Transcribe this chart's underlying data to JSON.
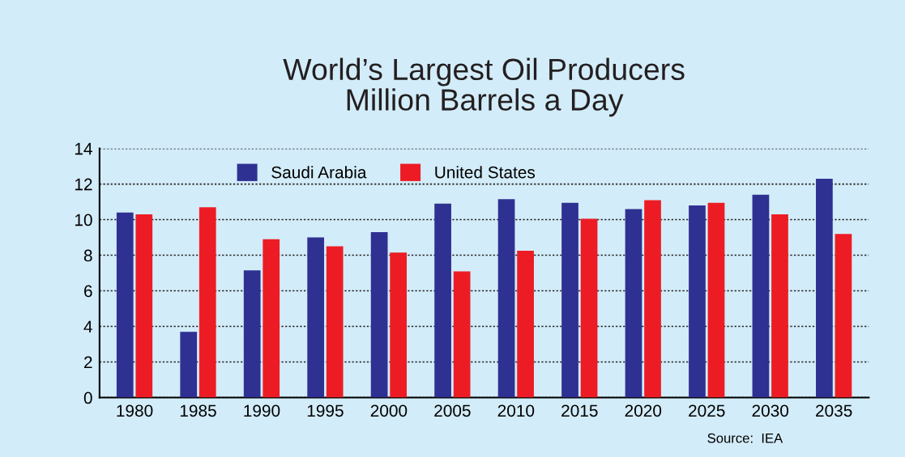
{
  "chart_data": {
    "type": "bar",
    "title": "World’s Largest Oil Producers\nMillion Barrels a Day",
    "categories": [
      "1980",
      "1985",
      "1990",
      "1995",
      "2000",
      "2005",
      "2010",
      "2015",
      "2020",
      "2025",
      "2030",
      "2035"
    ],
    "series": [
      {
        "name": "Saudi Arabia",
        "color": "#2e3192",
        "values": [
          10.4,
          3.7,
          7.15,
          9.0,
          9.3,
          10.9,
          11.15,
          10.95,
          10.6,
          10.8,
          11.4,
          12.3
        ]
      },
      {
        "name": "United States",
        "color": "#ed1c24",
        "values": [
          10.3,
          10.7,
          8.9,
          8.5,
          8.15,
          7.1,
          8.25,
          10.05,
          11.1,
          10.95,
          10.3,
          9.2
        ]
      }
    ],
    "ylim": [
      0,
      14
    ],
    "yticks": [
      0,
      2,
      4,
      6,
      8,
      10,
      12,
      14
    ],
    "grid": "y",
    "legend": "top left",
    "annotations": [
      "Source:  IEA"
    ]
  }
}
